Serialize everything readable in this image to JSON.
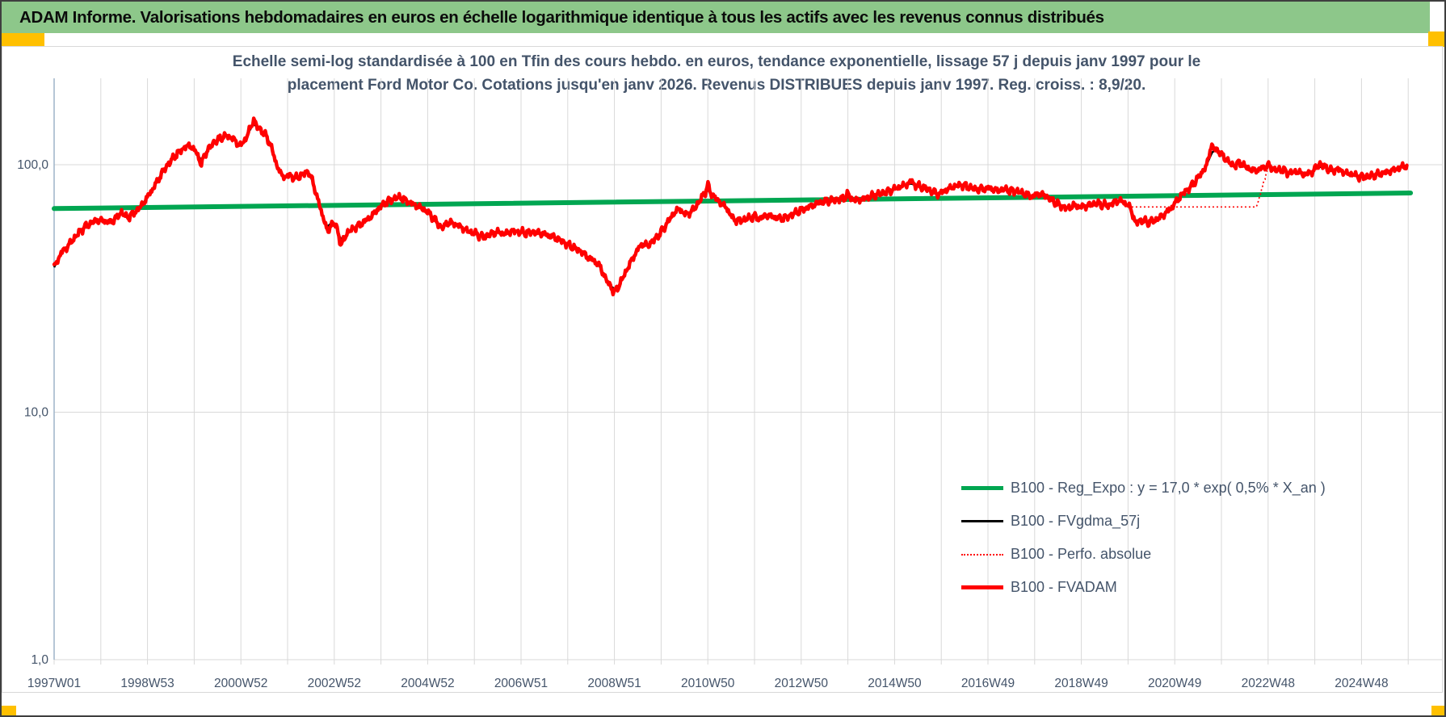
{
  "banner": {
    "title": "ADAM Informe. Valorisations hebdomadaires en euros en échelle logarithmique identique à tous les actifs avec les revenus connus distribués"
  },
  "colors": {
    "banner_green": "#8DC78A",
    "corner_yellow": "#FFC000",
    "title_text": "#44546A",
    "axis_label_text": "#44546A",
    "gridline": "#D9D9D9",
    "axis_line": "#9DB3C8",
    "reg_expo_green": "#00A651",
    "fvgdma_black": "#000000",
    "fvadam_red": "#FF0000",
    "frame_gray": "#D8D8D8"
  },
  "chart_data": {
    "type": "line",
    "title_lines": [
      "Echelle semi-log standardisée à 100 en Tfin des cours hebdo. en euros, tendance exponentielle, lissage 57 j depuis janv 1997 pour le",
      "placement Ford Motor Co. Cotations jusqu'en janv 2026. Revenus DISTRIBUES depuis janv 1997. Reg. croiss. : 8,9/20."
    ],
    "y_axis": {
      "scale": "log",
      "ticks": [
        {
          "label": "100,0",
          "value": 100
        },
        {
          "label": "10,0",
          "value": 10
        },
        {
          "label": "1,0",
          "value": 1
        }
      ],
      "range": [
        1,
        230
      ]
    },
    "x_axis": {
      "range_years": [
        1997.0,
        2026.05
      ],
      "gridline_every_years": 1,
      "labels": [
        {
          "text": "1997W01",
          "year": 1997
        },
        {
          "text": "1998W53",
          "year": 1999
        },
        {
          "text": "2000W52",
          "year": 2001
        },
        {
          "text": "2002W52",
          "year": 2003
        },
        {
          "text": "2004W52",
          "year": 2005
        },
        {
          "text": "2006W51",
          "year": 2007
        },
        {
          "text": "2008W51",
          "year": 2009
        },
        {
          "text": "2010W50",
          "year": 2011
        },
        {
          "text": "2012W50",
          "year": 2013
        },
        {
          "text": "2014W50",
          "year": 2015
        },
        {
          "text": "2016W49",
          "year": 2017
        },
        {
          "text": "2018W49",
          "year": 2019
        },
        {
          "text": "2020W49",
          "year": 2021
        },
        {
          "text": "2022W48",
          "year": 2023
        },
        {
          "text": "2024W48",
          "year": 2025
        }
      ]
    },
    "legend": [
      {
        "label": "B100 - Reg_Expo : y = 17,0 * exp( 0,5% *  X_an )",
        "color": "#00A651",
        "style": "solid",
        "weight": 5
      },
      {
        "label": "B100 - FVgdma_57j",
        "color": "#000000",
        "style": "solid",
        "weight": 3
      },
      {
        "label": "B100 - Perfo. absolue",
        "color": "#FF0000",
        "style": "dotted",
        "weight": 2
      },
      {
        "label": "B100 - FVADAM",
        "color": "#FF0000",
        "style": "solid",
        "weight": 5
      }
    ],
    "series": {
      "reg_expo": {
        "name": "B100 - Reg_Expo",
        "points": [
          [
            1997.0,
            66.5
          ],
          [
            2026.05,
            76.9
          ]
        ]
      },
      "fvgdma_57j": {
        "name": "B100 - FVgdma_57j",
        "points": [
          [
            1997.0,
            38.5
          ],
          [
            1997.15,
            44
          ],
          [
            1997.3,
            47
          ],
          [
            1997.45,
            51
          ],
          [
            1997.6,
            55
          ],
          [
            1997.75,
            57.5
          ],
          [
            1997.9,
            59.5
          ],
          [
            1998.05,
            59.5
          ],
          [
            1998.2,
            58.5
          ],
          [
            1998.35,
            61.5
          ],
          [
            1998.45,
            64.5
          ],
          [
            1998.55,
            61
          ],
          [
            1998.7,
            63.5
          ],
          [
            1998.85,
            67.5
          ],
          [
            1999.0,
            74
          ],
          [
            1999.15,
            82
          ],
          [
            1999.3,
            92
          ],
          [
            1999.45,
            101
          ],
          [
            1999.6,
            109
          ],
          [
            1999.75,
            116
          ],
          [
            1999.9,
            120
          ],
          [
            2000.05,
            112
          ],
          [
            2000.15,
            104
          ],
          [
            2000.25,
            112
          ],
          [
            2000.4,
            122
          ],
          [
            2000.55,
            128
          ],
          [
            2000.7,
            131
          ],
          [
            2000.85,
            127
          ],
          [
            2000.95,
            120
          ],
          [
            2001.05,
            122
          ],
          [
            2001.15,
            134
          ],
          [
            2001.27,
            146
          ],
          [
            2001.4,
            140
          ],
          [
            2001.55,
            130
          ],
          [
            2001.65,
            118
          ],
          [
            2001.75,
            102
          ],
          [
            2001.85,
            92
          ],
          [
            2001.95,
            89
          ],
          [
            2002.05,
            91
          ],
          [
            2002.15,
            88
          ],
          [
            2002.25,
            89.5
          ],
          [
            2002.35,
            92
          ],
          [
            2002.45,
            94
          ],
          [
            2002.55,
            84
          ],
          [
            2002.65,
            72
          ],
          [
            2002.75,
            62
          ],
          [
            2002.85,
            56
          ],
          [
            2002.95,
            58.5
          ],
          [
            2003.05,
            56
          ],
          [
            2003.15,
            49
          ],
          [
            2003.25,
            52
          ],
          [
            2003.35,
            54.5
          ],
          [
            2003.5,
            56.5
          ],
          [
            2003.65,
            59
          ],
          [
            2003.8,
            62
          ],
          [
            2003.95,
            66.5
          ],
          [
            2004.1,
            70.5
          ],
          [
            2004.25,
            72.5
          ],
          [
            2004.4,
            74
          ],
          [
            2004.55,
            71.5
          ],
          [
            2004.7,
            69
          ],
          [
            2004.85,
            67
          ],
          [
            2005.0,
            64.5
          ],
          [
            2005.15,
            60
          ],
          [
            2005.3,
            55.5
          ],
          [
            2005.45,
            58.5
          ],
          [
            2005.6,
            57.5
          ],
          [
            2005.75,
            55.5
          ],
          [
            2005.9,
            53.5
          ],
          [
            2006.05,
            52.5
          ],
          [
            2006.2,
            51
          ],
          [
            2006.35,
            52.5
          ],
          [
            2006.5,
            53.5
          ],
          [
            2006.65,
            52.5
          ],
          [
            2006.8,
            54
          ],
          [
            2006.95,
            53.5
          ],
          [
            2007.1,
            53
          ],
          [
            2007.25,
            53.5
          ],
          [
            2007.4,
            53
          ],
          [
            2007.55,
            52
          ],
          [
            2007.7,
            51
          ],
          [
            2007.85,
            49.5
          ],
          [
            2008.0,
            47.5
          ],
          [
            2008.15,
            46
          ],
          [
            2008.3,
            44.5
          ],
          [
            2008.45,
            42
          ],
          [
            2008.6,
            40.5
          ],
          [
            2008.7,
            38.5
          ],
          [
            2008.8,
            35
          ],
          [
            2008.9,
            32.5
          ],
          [
            2009.0,
            31.5
          ],
          [
            2009.1,
            32.5
          ],
          [
            2009.2,
            35.5
          ],
          [
            2009.35,
            40.5
          ],
          [
            2009.5,
            45.5
          ],
          [
            2009.6,
            48
          ],
          [
            2009.7,
            47
          ],
          [
            2009.85,
            49.5
          ],
          [
            2010.0,
            53.5
          ],
          [
            2010.15,
            59
          ],
          [
            2010.3,
            64.5
          ],
          [
            2010.4,
            66.5
          ],
          [
            2010.5,
            63
          ],
          [
            2010.65,
            64.5
          ],
          [
            2010.8,
            70
          ],
          [
            2010.9,
            75.5
          ],
          [
            2011.0,
            79
          ],
          [
            2011.1,
            75.5
          ],
          [
            2011.25,
            70.5
          ],
          [
            2011.4,
            67
          ],
          [
            2011.55,
            60
          ],
          [
            2011.7,
            59.5
          ],
          [
            2011.85,
            60.5
          ],
          [
            2012.0,
            62
          ],
          [
            2012.1,
            60.5
          ],
          [
            2012.25,
            62.5
          ],
          [
            2012.4,
            61.5
          ],
          [
            2012.55,
            60.5
          ],
          [
            2012.7,
            61.5
          ],
          [
            2012.85,
            63.5
          ],
          [
            2013.0,
            65.5
          ],
          [
            2013.2,
            68
          ],
          [
            2013.4,
            70.5
          ],
          [
            2013.6,
            71.5
          ],
          [
            2013.8,
            72.5
          ],
          [
            2014.0,
            74
          ],
          [
            2014.15,
            72
          ],
          [
            2014.3,
            72.5
          ],
          [
            2014.5,
            74.5
          ],
          [
            2014.7,
            76.5
          ],
          [
            2014.9,
            78.5
          ],
          [
            2015.05,
            80.5
          ],
          [
            2015.2,
            82.5
          ],
          [
            2015.35,
            84
          ],
          [
            2015.5,
            82
          ],
          [
            2015.65,
            80.5
          ],
          [
            2015.8,
            78
          ],
          [
            2015.95,
            76
          ],
          [
            2016.1,
            79
          ],
          [
            2016.3,
            82
          ],
          [
            2016.45,
            83
          ],
          [
            2016.6,
            81
          ],
          [
            2016.75,
            79.5
          ],
          [
            2016.9,
            80
          ],
          [
            2017.05,
            80.5
          ],
          [
            2017.2,
            78.5
          ],
          [
            2017.35,
            79.5
          ],
          [
            2017.5,
            78.5
          ],
          [
            2017.65,
            78
          ],
          [
            2017.8,
            76
          ],
          [
            2017.95,
            74.5
          ],
          [
            2018.1,
            76.5
          ],
          [
            2018.25,
            74.5
          ],
          [
            2018.4,
            71
          ],
          [
            2018.55,
            68.5
          ],
          [
            2018.7,
            66.5
          ],
          [
            2018.85,
            68.5
          ],
          [
            2019.0,
            67.5
          ],
          [
            2019.15,
            68.5
          ],
          [
            2019.3,
            70
          ],
          [
            2019.45,
            69
          ],
          [
            2019.6,
            68.5
          ],
          [
            2019.75,
            71.5
          ],
          [
            2019.9,
            71
          ],
          [
            2020.05,
            67
          ],
          [
            2020.15,
            59.5
          ],
          [
            2020.3,
            59.5
          ],
          [
            2020.45,
            58.5
          ],
          [
            2020.6,
            60
          ],
          [
            2020.75,
            62.5
          ],
          [
            2020.9,
            66
          ],
          [
            2021.05,
            71.5
          ],
          [
            2021.2,
            77.5
          ],
          [
            2021.35,
            81.5
          ],
          [
            2021.5,
            88.5
          ],
          [
            2021.65,
            97
          ],
          [
            2021.8,
            112
          ],
          [
            2021.9,
            116
          ],
          [
            2022.0,
            110
          ],
          [
            2022.1,
            105
          ],
          [
            2022.25,
            99
          ],
          [
            2022.4,
            102
          ],
          [
            2022.55,
            97
          ],
          [
            2022.7,
            94.5
          ],
          [
            2022.85,
            96.5
          ],
          [
            2023.0,
            99.5
          ],
          [
            2023.15,
            95
          ],
          [
            2023.3,
            95.5
          ],
          [
            2023.45,
            92.5
          ],
          [
            2023.6,
            94
          ],
          [
            2023.75,
            91.5
          ],
          [
            2023.9,
            92.5
          ],
          [
            2024.05,
            97.5
          ],
          [
            2024.2,
            98.5
          ],
          [
            2024.35,
            94.5
          ],
          [
            2024.5,
            96
          ],
          [
            2024.65,
            92.5
          ],
          [
            2024.8,
            91.5
          ],
          [
            2024.95,
            89.5
          ],
          [
            2025.1,
            89.5
          ],
          [
            2025.25,
            90.5
          ],
          [
            2025.4,
            92
          ],
          [
            2025.55,
            93.5
          ],
          [
            2025.7,
            95.5
          ],
          [
            2025.85,
            97.5
          ],
          [
            2025.97,
            99.5
          ]
        ]
      },
      "fvadam": {
        "name": "B100 - FVADAM",
        "derived_from": "fvgdma_57j",
        "sample_step_years": 0.019,
        "noise_components": [
          {
            "amp": 0.016,
            "freq": 57,
            "phase": 1.3
          },
          {
            "amp": 0.014,
            "freq": 131,
            "phase": 0.7
          },
          {
            "amp": 0.011,
            "freq": 293,
            "phase": 2.1
          },
          {
            "amp": 0.008,
            "freq": 611,
            "phase": 4.2
          }
        ],
        "spikes": [
          {
            "t": 2000.15,
            "amp": -0.04,
            "w": 0.05
          },
          {
            "t": 2001.27,
            "amp": 0.05,
            "w": 0.04
          },
          {
            "t": 2002.87,
            "amp": -0.06,
            "w": 0.04
          },
          {
            "t": 2003.15,
            "amp": -0.05,
            "w": 0.04
          },
          {
            "t": 2009.0,
            "amp": -0.035,
            "w": 0.05
          },
          {
            "t": 2011.0,
            "amp": 0.045,
            "w": 0.04
          },
          {
            "t": 2014.0,
            "amp": 0.035,
            "w": 0.03
          },
          {
            "t": 2015.35,
            "amp": 0.03,
            "w": 0.04
          },
          {
            "t": 2020.17,
            "amp": -0.03,
            "w": 0.04
          },
          {
            "t": 2021.78,
            "amp": 0.09,
            "w": 0.045
          },
          {
            "t": 2024.1,
            "amp": 0.03,
            "w": 0.05
          }
        ]
      },
      "perfo_absolue": {
        "name": "B100 - Perfo. absolue",
        "derived_from": "fvadam",
        "flat_segment": {
          "from": 2019.95,
          "to": 2022.75,
          "value": 67.5,
          "rejoin_by": 2023.0
        }
      }
    }
  }
}
